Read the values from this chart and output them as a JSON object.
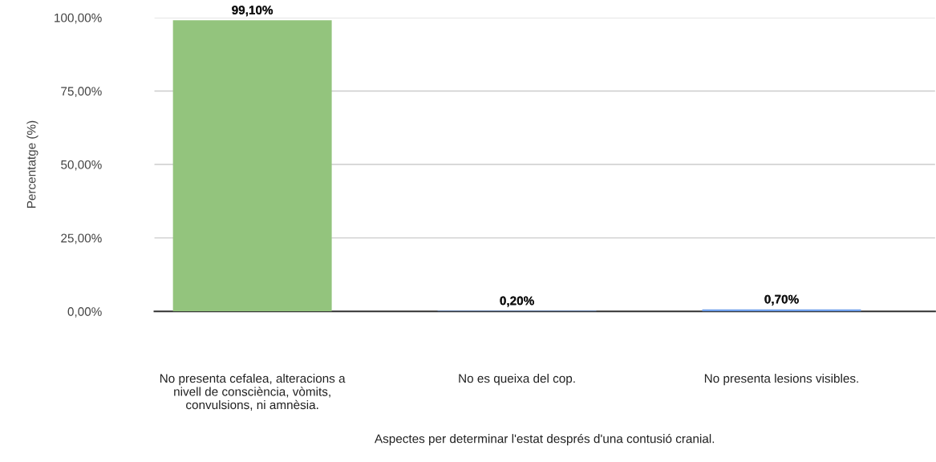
{
  "chart_data": {
    "type": "bar",
    "xlabel": "Aspectes per determinar l'estat després d'una contusió cranial.",
    "ylabel": "Percentatge (%)",
    "categories": [
      "No presenta cefalea, alteracions a\nnivell de consciència, vòmits,\nconvulsions, ni amnèsia.",
      "No es queixa del cop.",
      "No presenta lesions visibles."
    ],
    "values": [
      99.1,
      0.2,
      0.7
    ],
    "colors": [
      "#93c47d",
      "#6d9eeb",
      "#6d9eeb"
    ],
    "value_labels": [
      "99,10%",
      "0,20%",
      "0,70%"
    ],
    "ylim": [
      0,
      100
    ],
    "yticks": [
      {
        "value": 0,
        "label": "0,00%"
      },
      {
        "value": 25,
        "label": "25,00%"
      },
      {
        "value": 50,
        "label": "50,00%"
      },
      {
        "value": 75,
        "label": "75,00%"
      },
      {
        "value": 100,
        "label": "100,00%"
      }
    ],
    "grid": "y",
    "legend": false
  }
}
